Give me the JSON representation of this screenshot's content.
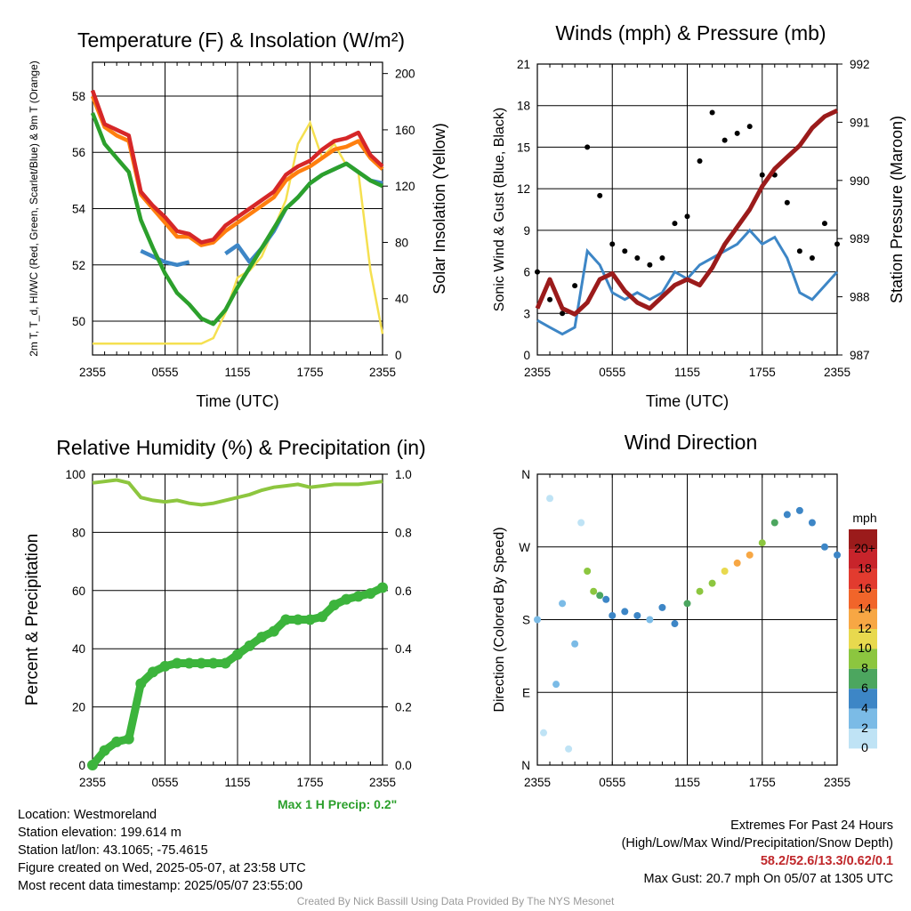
{
  "chart_data": [
    {
      "type": "line",
      "title": "Temperature (F) & Insolation (W/m²)",
      "xlabel": "Time (UTC)",
      "ylabel": "2m T, T_d, HI/WC (Red, Green, Scarlet/Blue) & 9m T (Orange)",
      "y2label": "Solar Insolation (Yellow)",
      "xticks": [
        "2355",
        "0555",
        "1155",
        "1755",
        "2355"
      ],
      "ylim": [
        48.8,
        59.2
      ],
      "yticks": [
        50,
        52,
        54,
        56,
        58
      ],
      "y2lim": [
        0,
        208
      ],
      "y2ticks": [
        0,
        40,
        80,
        120,
        160,
        200
      ],
      "grid": true,
      "x_hours": [
        0,
        1,
        2,
        3,
        4,
        5,
        6,
        7,
        8,
        9,
        10,
        11,
        12,
        13,
        14,
        15,
        16,
        17,
        18,
        19,
        20,
        21,
        22,
        23,
        24
      ],
      "series": [
        {
          "color": "#d62728",
          "values": [
            58.2,
            57.0,
            56.8,
            56.6,
            54.6,
            54.1,
            53.7,
            53.2,
            53.1,
            52.8,
            52.9,
            53.4,
            53.7,
            54.0,
            54.3,
            54.6,
            55.2,
            55.5,
            55.7,
            56.1,
            56.4,
            56.5,
            56.7,
            55.9,
            55.5
          ]
        },
        {
          "color": "#ff7f0e",
          "values": [
            58.0,
            56.9,
            56.6,
            56.4,
            54.5,
            54.0,
            53.5,
            53.0,
            53.0,
            52.7,
            52.8,
            53.2,
            53.5,
            53.8,
            54.1,
            54.4,
            55.0,
            55.3,
            55.5,
            55.8,
            56.1,
            56.2,
            56.4,
            55.8,
            55.4
          ]
        },
        {
          "color": "#2ca02c",
          "values": [
            57.4,
            56.3,
            55.8,
            55.3,
            53.6,
            52.6,
            51.7,
            51.0,
            50.6,
            50.1,
            49.9,
            50.4,
            51.2,
            51.9,
            52.6,
            53.3,
            54.0,
            54.4,
            54.9,
            55.2,
            55.4,
            55.6,
            55.3,
            55.0,
            54.8
          ]
        },
        {
          "color": "#3d86c6",
          "values": [
            null,
            null,
            null,
            null,
            52.5,
            52.3,
            52.1,
            52.0,
            52.1,
            null,
            null,
            52.4,
            52.7,
            52.1,
            52.6,
            53.2,
            54.0,
            54.4,
            54.9,
            55.2,
            55.4,
            55.6,
            55.3,
            55.0,
            54.9
          ]
        }
      ],
      "y2_series": [
        {
          "color": "#f5e050",
          "values": [
            8,
            8,
            8,
            8,
            8,
            8,
            8,
            8,
            8,
            8,
            12,
            30,
            55,
            60,
            70,
            90,
            110,
            150,
            165,
            140,
            150,
            135,
            130,
            60,
            15
          ]
        }
      ]
    },
    {
      "type": "scatter",
      "title": "Winds (mph) & Pressure (mb)",
      "xlabel": "Time (UTC)",
      "ylabel": "Sonic Wind & Gust (Blue, Black)",
      "y2label": "Station Pressure (Maroon)",
      "xticks": [
        "2355",
        "0555",
        "1155",
        "1755",
        "2355"
      ],
      "ylim": [
        0,
        21
      ],
      "yticks": [
        0,
        3,
        6,
        9,
        12,
        15,
        18,
        21
      ],
      "y2lim": [
        987,
        992
      ],
      "y2ticks": [
        987,
        988,
        989,
        990,
        991,
        992
      ],
      "grid": true,
      "x_hours": [
        0,
        1,
        2,
        3,
        4,
        5,
        6,
        7,
        8,
        9,
        10,
        11,
        12,
        13,
        14,
        15,
        16,
        17,
        18,
        19,
        20,
        21,
        22,
        23,
        24
      ],
      "series": [
        {
          "name": "Sonic Wind",
          "color": "#3d86c6",
          "values": [
            2.5,
            2.0,
            1.5,
            2.0,
            7.5,
            6.5,
            4.5,
            4.0,
            4.5,
            4.0,
            4.5,
            6.0,
            5.5,
            6.5,
            7.0,
            7.5,
            8.0,
            9.0,
            8.0,
            8.5,
            7.0,
            4.5,
            4.0,
            5.0,
            6.0
          ]
        },
        {
          "name": "Gust",
          "color": "#000000",
          "values": [
            6.0,
            4.0,
            3.0,
            5.0,
            15.0,
            11.5,
            8.0,
            7.5,
            7.0,
            6.5,
            7.0,
            9.5,
            10.0,
            14.0,
            17.5,
            15.5,
            16.0,
            16.5,
            13.0,
            13.0,
            11.0,
            7.5,
            7.0,
            9.5,
            8.0
          ]
        }
      ],
      "y2_series": [
        {
          "name": "Station Pressure",
          "color": "#9b1b1b",
          "values": [
            987.8,
            988.3,
            987.8,
            987.7,
            987.9,
            988.3,
            988.4,
            988.1,
            987.9,
            987.8,
            988.0,
            988.2,
            988.3,
            988.2,
            988.5,
            988.9,
            989.2,
            989.5,
            989.9,
            990.2,
            990.4,
            990.6,
            990.9,
            991.1,
            991.2
          ]
        }
      ]
    },
    {
      "type": "line",
      "title": "Relative Humidity (%) & Precipitation (in)",
      "xlabel": "",
      "ylabel": "Percent & Precipitation",
      "xticks": [
        "2355",
        "0555",
        "1155",
        "1755",
        "2355"
      ],
      "ylim": [
        0,
        100
      ],
      "yticks": [
        0,
        20,
        40,
        60,
        80,
        100
      ],
      "y2lim": [
        0,
        1.0
      ],
      "y2ticks": [
        "0.0",
        "0.2",
        "0.4",
        "0.6",
        "0.8",
        "1.0"
      ],
      "grid": true,
      "annotation": "Max 1 H Precip: 0.2\"",
      "x_hours": [
        0,
        1,
        2,
        3,
        4,
        5,
        6,
        7,
        8,
        9,
        10,
        11,
        12,
        13,
        14,
        15,
        16,
        17,
        18,
        19,
        20,
        21,
        22,
        23,
        24
      ],
      "series": [
        {
          "name": "Relative Humidity",
          "color": "#8dc63f",
          "values": [
            97,
            97.5,
            98,
            97,
            92,
            91,
            90.5,
            91,
            90,
            89.5,
            90,
            91,
            92,
            93,
            94.5,
            95.5,
            96,
            96.5,
            95.5,
            96,
            96.5,
            96.5,
            96.5,
            97,
            97.5
          ]
        },
        {
          "name": "Precipitation",
          "color": "#3cb43c",
          "values": [
            0.0,
            0.05,
            0.08,
            0.09,
            0.28,
            0.32,
            0.34,
            0.35,
            0.35,
            0.35,
            0.35,
            0.35,
            0.38,
            0.41,
            0.44,
            0.46,
            0.5,
            0.5,
            0.5,
            0.51,
            0.55,
            0.57,
            0.58,
            0.59,
            0.61
          ]
        }
      ]
    },
    {
      "type": "scatter",
      "title": "Wind Direction",
      "xlabel": "",
      "ylabel": "Direction (Colored By Speed)",
      "xticks": [
        "2355",
        "0555",
        "1155",
        "1755",
        "2355"
      ],
      "yticks": [
        "N",
        "E",
        "S",
        "W",
        "N"
      ],
      "ylim": [
        0,
        360
      ],
      "grid": true,
      "colorbar": {
        "title": "mph",
        "labels": [
          "20+",
          "18",
          "16",
          "14",
          "12",
          "10",
          "8",
          "6",
          "4",
          "2",
          "0"
        ],
        "colors": [
          "#9b1b1b",
          "#c8242b",
          "#e23b2f",
          "#f1652a",
          "#f7a744",
          "#e8d94e",
          "#8cc63f",
          "#4ca65f",
          "#3d86c6",
          "#7bbbe6",
          "#bfe3f5"
        ]
      },
      "x_hours": [
        0,
        0.5,
        1,
        1.5,
        2,
        2.5,
        3,
        3.5,
        4,
        4.5,
        5,
        5.5,
        6,
        7,
        8,
        9,
        10,
        11,
        12,
        13,
        14,
        15,
        16,
        17,
        18,
        19,
        20,
        21,
        22,
        23,
        24
      ],
      "values": [
        180,
        40,
        330,
        100,
        200,
        20,
        150,
        300,
        240,
        215,
        210,
        205,
        185,
        190,
        185,
        180,
        195,
        175,
        200,
        215,
        225,
        240,
        250,
        260,
        275,
        300,
        310,
        315,
        300,
        270,
        260
      ],
      "speeds": [
        2,
        0,
        1,
        2,
        3,
        1,
        2,
        1,
        9,
        8,
        6,
        5,
        4,
        4,
        4,
        3,
        4,
        4,
        6,
        8,
        9,
        11,
        12,
        12,
        8,
        6,
        5,
        4,
        4,
        5,
        4
      ]
    }
  ],
  "info": {
    "location": "Location: Westmoreland",
    "elevation": "Station elevation: 199.614 m",
    "latlon": "Station lat/lon: 43.1065; -75.4615",
    "created": "Figure created on Wed, 2025-05-07, at 23:58 UTC",
    "timestamp": "Most recent data timestamp: 2025/05/07 23:55:00"
  },
  "extremes": {
    "heading": "Extremes For Past 24 Hours",
    "subheading": "(High/Low/Max Wind/Precipitation/Snow Depth)",
    "values": "58.2/52.6/13.3/0.62/0.1",
    "max_gust": "Max Gust: 20.7 mph On 05/07 at 1305 UTC"
  },
  "credit": "Created By Nick Bassill Using Data Provided By The NYS Mesonet"
}
